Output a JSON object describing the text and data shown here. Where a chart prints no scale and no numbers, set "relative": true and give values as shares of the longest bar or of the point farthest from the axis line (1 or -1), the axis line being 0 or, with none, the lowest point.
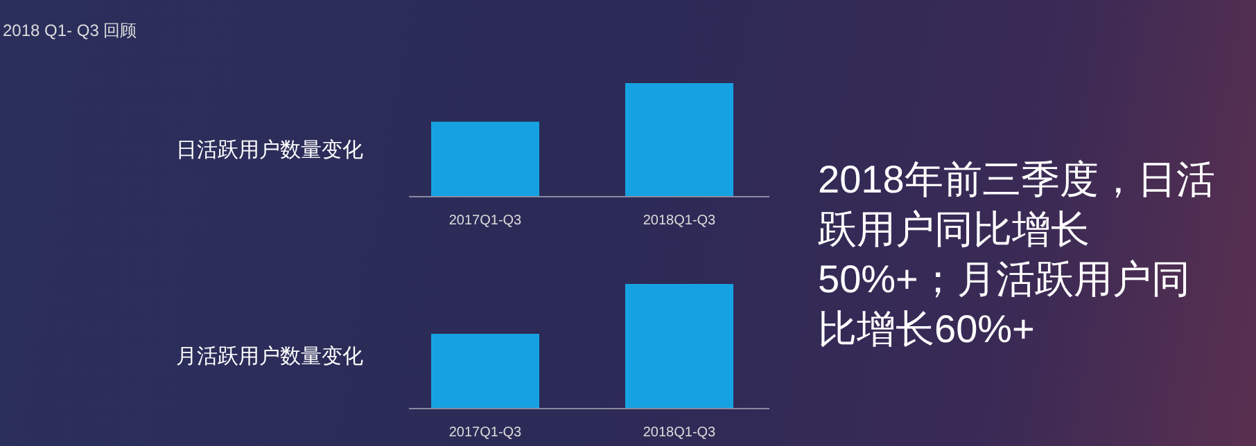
{
  "chart_data": [
    {
      "type": "other",
      "title": "2018 Q1- Q3 回顾",
      "annotations": [
        "2018年前三季度，日活跃用户同比增长50%+；月活跃用户同比增长60%+"
      ]
    },
    {
      "type": "bar",
      "title": "日活跃用户数量变化",
      "categories": [
        "2017Q1-Q3",
        "2018Q1-Q3"
      ],
      "values": [
        0.66,
        1
      ],
      "color": "#16a2e2",
      "relative": true
    },
    {
      "type": "bar",
      "title": "月活跃用户数量变化",
      "categories": [
        "2017Q1-Q3",
        "2018Q1-Q3"
      ],
      "values": [
        0.6,
        1
      ],
      "color": "#16a2e2",
      "relative": true
    }
  ]
}
